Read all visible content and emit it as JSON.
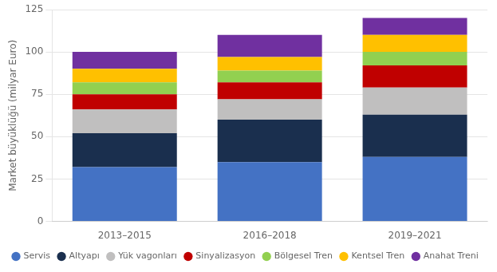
{
  "chart_data": {
    "type": "bar",
    "stacked": true,
    "categories": [
      "2013–2015",
      "2016–2018",
      "2019–2021"
    ],
    "series": [
      {
        "name": "Servis",
        "color": "#4472c4",
        "values": [
          32,
          35,
          38
        ]
      },
      {
        "name": "Altyapı",
        "color": "#1a2f4e",
        "values": [
          20,
          25,
          25
        ]
      },
      {
        "name": "Yük vagonları",
        "color": "#c0bfbf",
        "values": [
          14,
          12,
          16
        ]
      },
      {
        "name": "Sinyalizasyon",
        "color": "#c00000",
        "values": [
          9,
          10,
          13
        ]
      },
      {
        "name": "Bölgesel Tren",
        "color": "#92d050",
        "values": [
          7,
          7,
          8
        ]
      },
      {
        "name": "Kentsel Tren",
        "color": "#ffc000",
        "values": [
          8,
          8,
          10
        ]
      },
      {
        "name": "Anahat Treni",
        "color": "#7030a0",
        "values": [
          10,
          13,
          10
        ]
      }
    ],
    "ylabel": "Market büyüklüğü (milyar Euro)",
    "ylim": [
      0,
      125
    ],
    "yticks": [
      0,
      25,
      50,
      75,
      100,
      125
    ],
    "grid": true,
    "legend": "bottom"
  }
}
